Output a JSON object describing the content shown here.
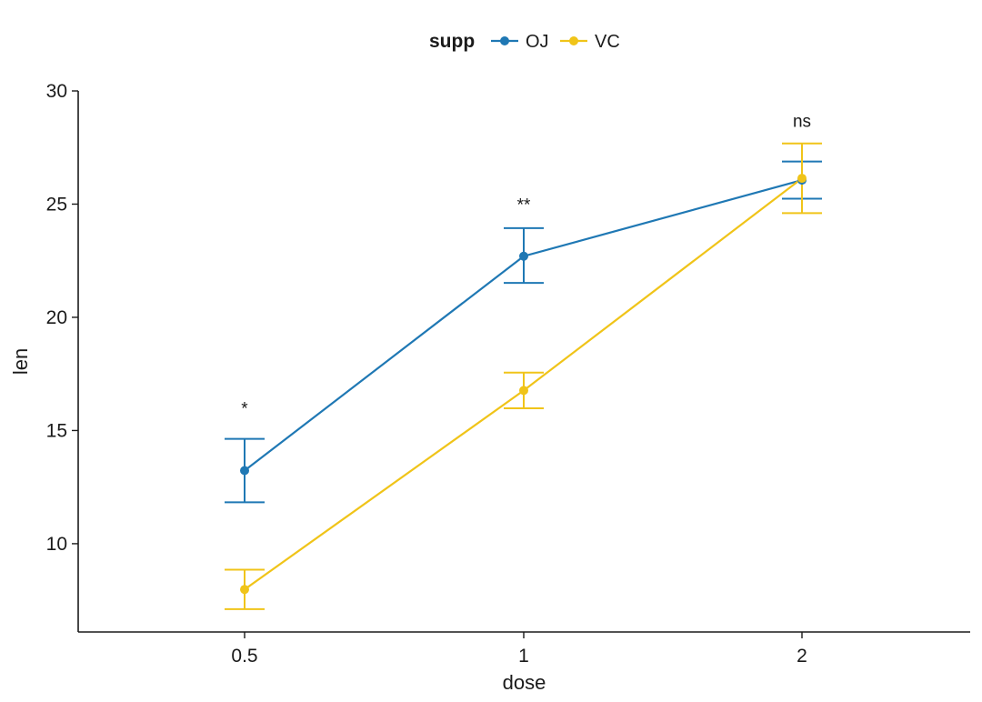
{
  "chart_data": {
    "type": "line",
    "x_categories": [
      "0.5",
      "1",
      "2"
    ],
    "xlabel": "dose",
    "ylabel": "len",
    "ylim": [
      6.1,
      30
    ],
    "y_ticks": [
      10,
      15,
      20,
      25,
      30
    ],
    "legend": {
      "title": "supp",
      "position": "top"
    },
    "series": [
      {
        "name": "OJ",
        "color": "#1f78b4",
        "values": [
          13.23,
          22.7,
          26.06
        ],
        "err_low": [
          11.83,
          21.52,
          25.24
        ],
        "err_high": [
          14.63,
          23.94,
          26.88
        ]
      },
      {
        "name": "VC",
        "color": "#f0c419",
        "values": [
          7.98,
          16.77,
          26.14
        ],
        "err_low": [
          7.11,
          15.98,
          24.6
        ],
        "err_high": [
          8.85,
          17.56,
          27.68
        ]
      }
    ],
    "annotations": [
      {
        "x": "0.5",
        "y": 16.0,
        "label": "*"
      },
      {
        "x": "1",
        "y": 25.0,
        "label": "**"
      },
      {
        "x": "2",
        "y": 28.7,
        "label": "ns"
      }
    ],
    "grid": false
  }
}
